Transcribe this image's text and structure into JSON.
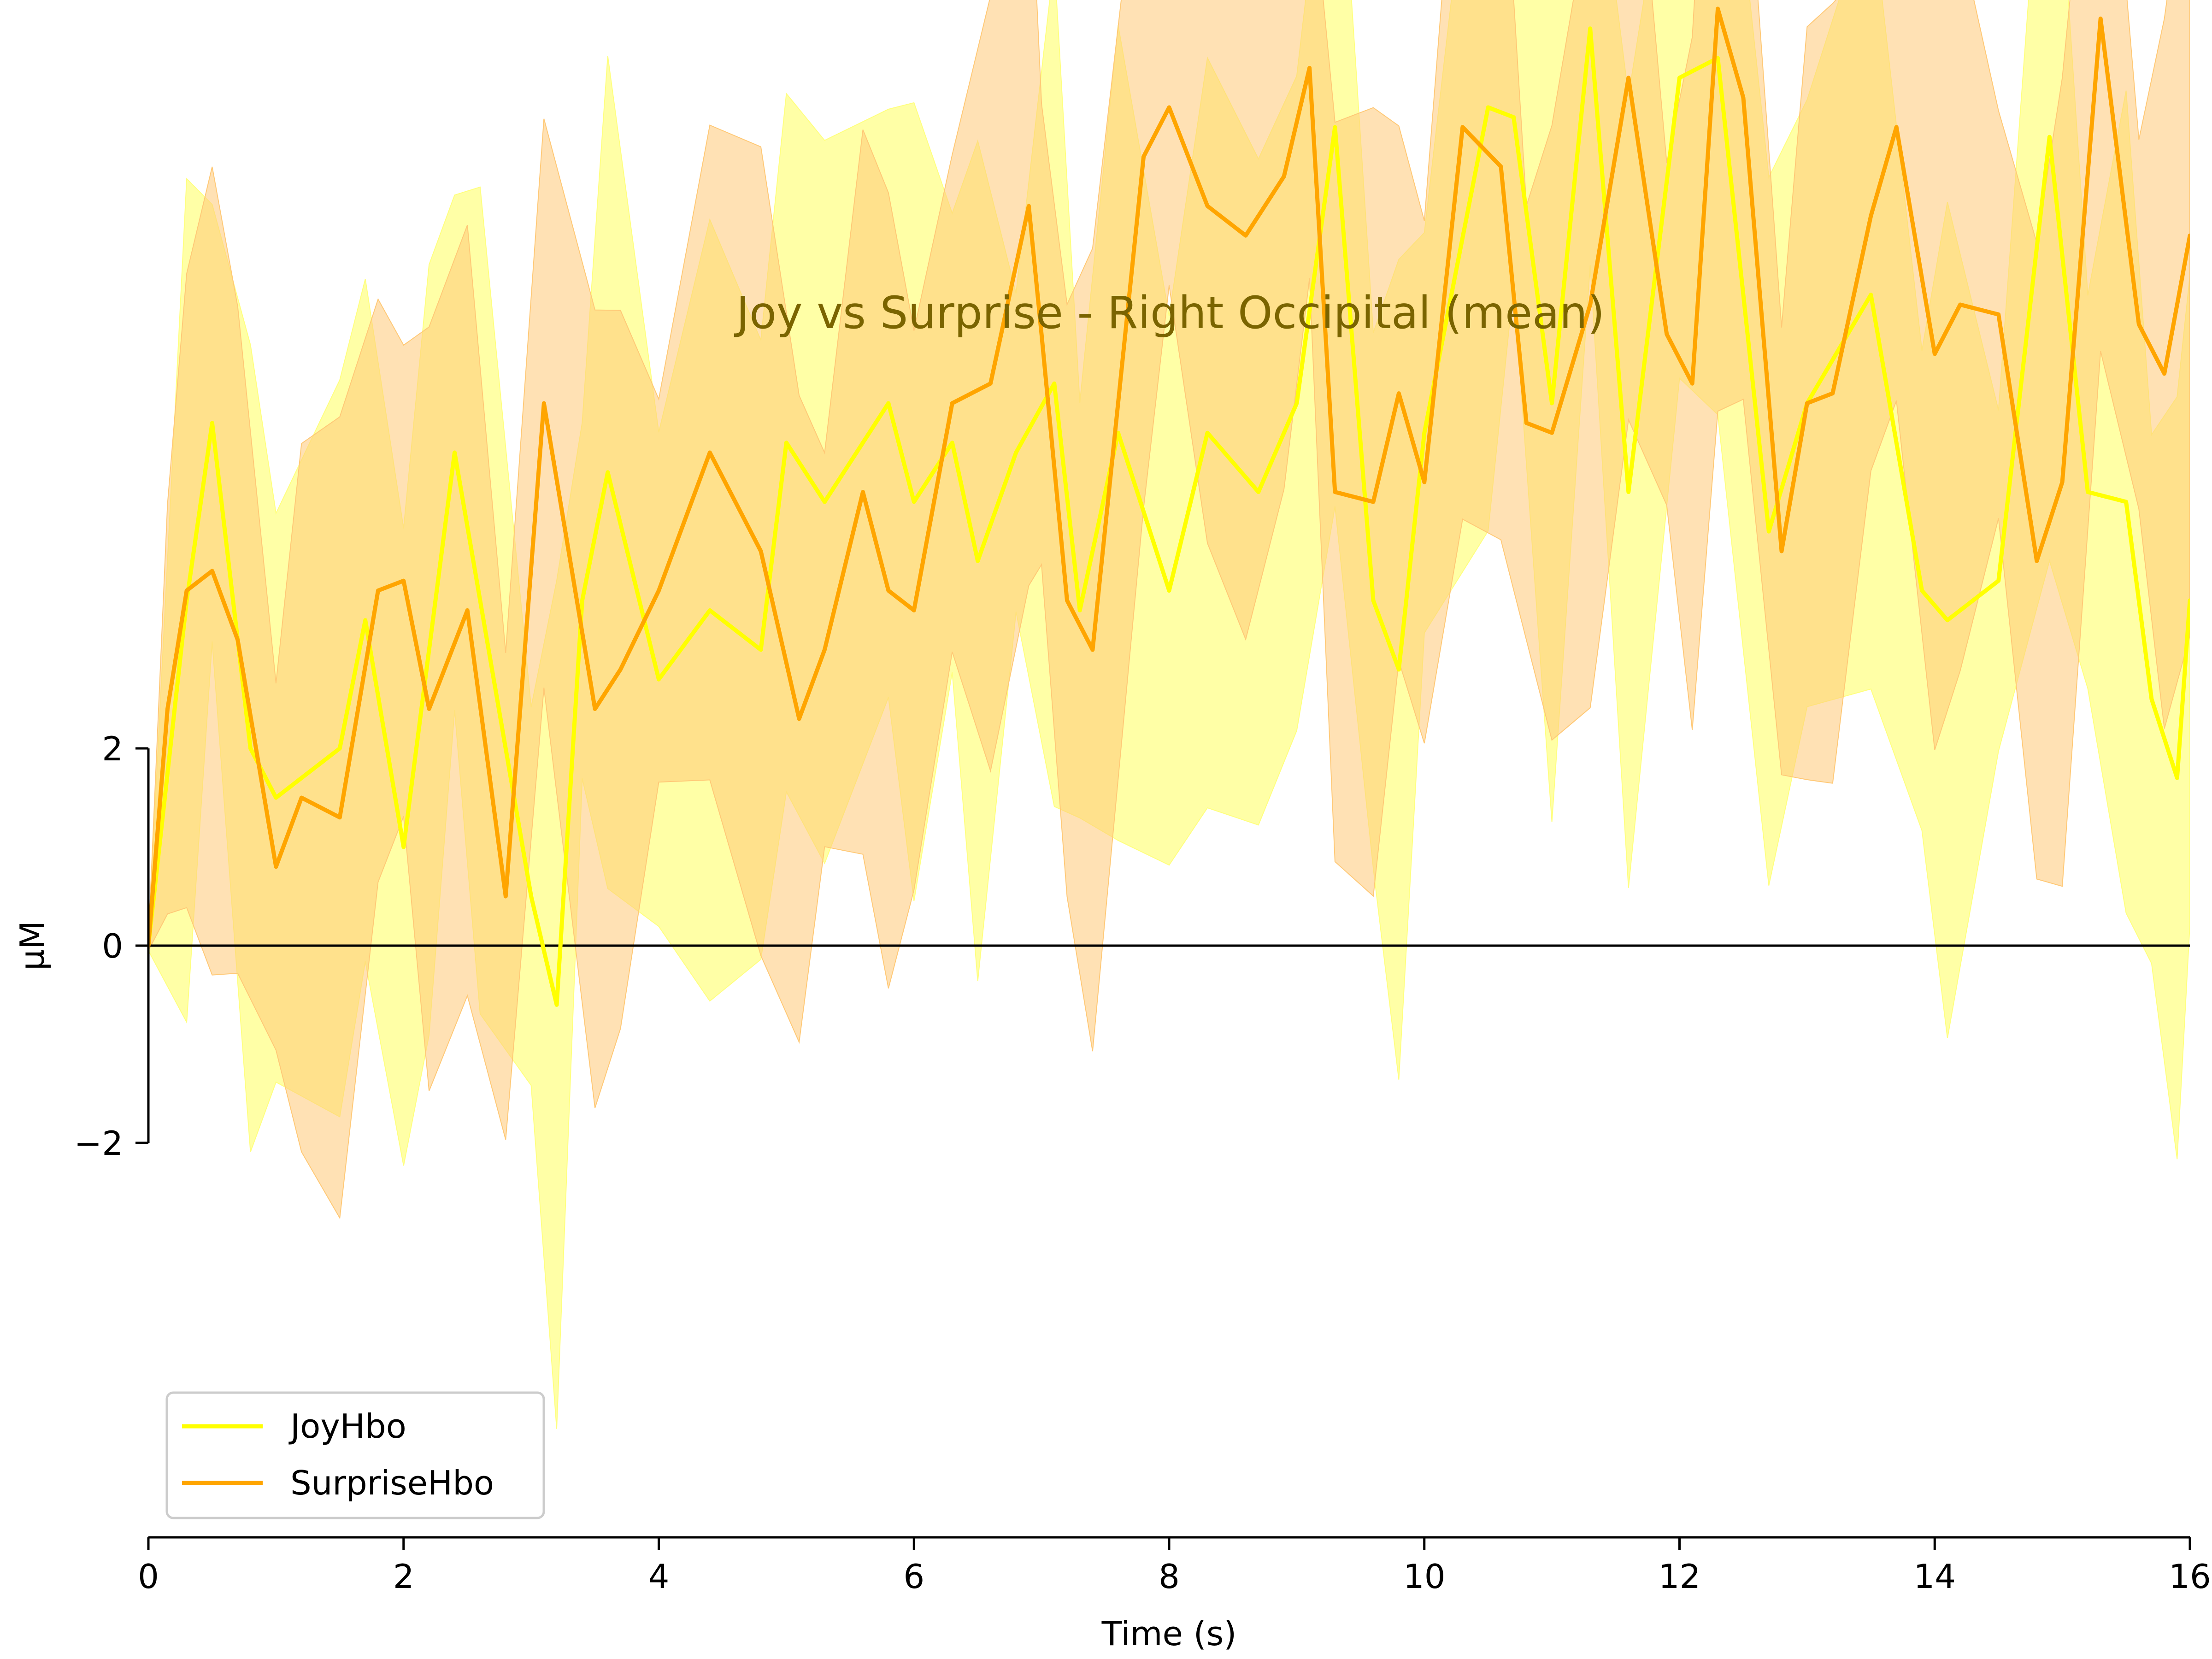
{
  "chart_data": {
    "type": "line",
    "title": "Joy vs Surprise - Right Occipital (mean)",
    "xlabel": "Time (s)",
    "ylabel": "µM",
    "xlim": [
      0,
      16
    ],
    "ylim": [
      -6,
      9.5
    ],
    "x_ticks": [
      0,
      2,
      4,
      6,
      8,
      10,
      12,
      14,
      16
    ],
    "x_tick_labels": [
      "0",
      "2",
      "4",
      "6",
      "8",
      "10",
      "12",
      "14",
      "16"
    ],
    "y_ticks": [
      -2,
      0,
      2
    ],
    "y_tick_labels": [
      "−2",
      "0",
      "2"
    ],
    "zero_line": true,
    "grid": false,
    "legend_position": "bottom-left",
    "series": [
      {
        "name": "JoyHbo",
        "color": "#ffff00",
        "band_color": "#ffff80",
        "points": [
          [
            0,
            0
          ],
          [
            0.3,
            3.5
          ],
          [
            0.5,
            5.3
          ],
          [
            0.8,
            2.0
          ],
          [
            1.0,
            1.5
          ],
          [
            1.5,
            2.0
          ],
          [
            1.7,
            3.3
          ],
          [
            2.0,
            1.0
          ],
          [
            2.2,
            3.0
          ],
          [
            2.4,
            5.0
          ],
          [
            2.6,
            3.5
          ],
          [
            3.0,
            0.5
          ],
          [
            3.2,
            -0.6
          ],
          [
            3.4,
            3.5
          ],
          [
            3.6,
            4.8
          ],
          [
            4.0,
            2.7
          ],
          [
            4.4,
            3.4
          ],
          [
            4.8,
            3.0
          ],
          [
            5.0,
            5.1
          ],
          [
            5.3,
            4.5
          ],
          [
            5.8,
            5.5
          ],
          [
            6.0,
            4.5
          ],
          [
            6.3,
            5.1
          ],
          [
            6.5,
            3.9
          ],
          [
            6.8,
            5.0
          ],
          [
            7.1,
            5.7
          ],
          [
            7.3,
            3.4
          ],
          [
            7.6,
            5.2
          ],
          [
            8.0,
            3.6
          ],
          [
            8.3,
            5.2
          ],
          [
            8.7,
            4.6
          ],
          [
            9.0,
            5.5
          ],
          [
            9.3,
            8.3
          ],
          [
            9.6,
            3.5
          ],
          [
            9.8,
            2.8
          ],
          [
            10.0,
            5.2
          ],
          [
            10.5,
            8.5
          ],
          [
            10.7,
            8.4
          ],
          [
            11.0,
            5.5
          ],
          [
            11.3,
            9.3
          ],
          [
            11.6,
            4.6
          ],
          [
            12.0,
            8.8
          ],
          [
            12.3,
            9.0
          ],
          [
            12.7,
            4.2
          ],
          [
            13.0,
            5.5
          ],
          [
            13.5,
            6.6
          ],
          [
            13.9,
            3.6
          ],
          [
            14.1,
            3.3
          ],
          [
            14.5,
            3.7
          ],
          [
            14.9,
            8.2
          ],
          [
            15.2,
            4.6
          ],
          [
            15.5,
            4.5
          ],
          [
            15.7,
            2.5
          ],
          [
            15.9,
            1.7
          ],
          [
            16.0,
            3.5
          ]
        ]
      },
      {
        "name": "SurpriseHbo",
        "color": "#ffa500",
        "band_color": "#ffc977",
        "points": [
          [
            0,
            0
          ],
          [
            0.15,
            2.4
          ],
          [
            0.3,
            3.6
          ],
          [
            0.5,
            3.8
          ],
          [
            0.7,
            3.1
          ],
          [
            1.0,
            0.8
          ],
          [
            1.2,
            1.5
          ],
          [
            1.5,
            1.3
          ],
          [
            1.8,
            3.6
          ],
          [
            2.0,
            3.7
          ],
          [
            2.2,
            2.4
          ],
          [
            2.5,
            3.4
          ],
          [
            2.8,
            0.5
          ],
          [
            3.1,
            5.5
          ],
          [
            3.5,
            2.4
          ],
          [
            3.7,
            2.8
          ],
          [
            4.0,
            3.6
          ],
          [
            4.4,
            5.0
          ],
          [
            4.8,
            4.0
          ],
          [
            5.1,
            2.3
          ],
          [
            5.3,
            3.0
          ],
          [
            5.6,
            4.6
          ],
          [
            5.8,
            3.6
          ],
          [
            6.0,
            3.4
          ],
          [
            6.3,
            5.5
          ],
          [
            6.6,
            5.7
          ],
          [
            6.9,
            7.5
          ],
          [
            7.0,
            6.2
          ],
          [
            7.2,
            3.5
          ],
          [
            7.4,
            3.0
          ],
          [
            7.8,
            8.0
          ],
          [
            8.0,
            8.5
          ],
          [
            8.3,
            7.5
          ],
          [
            8.6,
            7.2
          ],
          [
            8.9,
            7.8
          ],
          [
            9.1,
            8.9
          ],
          [
            9.3,
            4.6
          ],
          [
            9.6,
            4.5
          ],
          [
            9.8,
            5.6
          ],
          [
            10.0,
            4.7
          ],
          [
            10.3,
            8.3
          ],
          [
            10.6,
            7.9
          ],
          [
            10.8,
            5.3
          ],
          [
            11.0,
            5.2
          ],
          [
            11.3,
            6.5
          ],
          [
            11.6,
            8.8
          ],
          [
            11.9,
            6.2
          ],
          [
            12.1,
            5.7
          ],
          [
            12.3,
            9.5
          ],
          [
            12.5,
            8.6
          ],
          [
            12.8,
            4.0
          ],
          [
            13.0,
            5.5
          ],
          [
            13.2,
            5.6
          ],
          [
            13.5,
            7.4
          ],
          [
            13.7,
            8.3
          ],
          [
            14.0,
            6.0
          ],
          [
            14.2,
            6.5
          ],
          [
            14.5,
            6.4
          ],
          [
            14.8,
            3.9
          ],
          [
            15.0,
            4.7
          ],
          [
            15.3,
            9.4
          ],
          [
            15.6,
            6.3
          ],
          [
            15.8,
            5.8
          ],
          [
            16.0,
            7.2
          ]
        ]
      }
    ]
  }
}
